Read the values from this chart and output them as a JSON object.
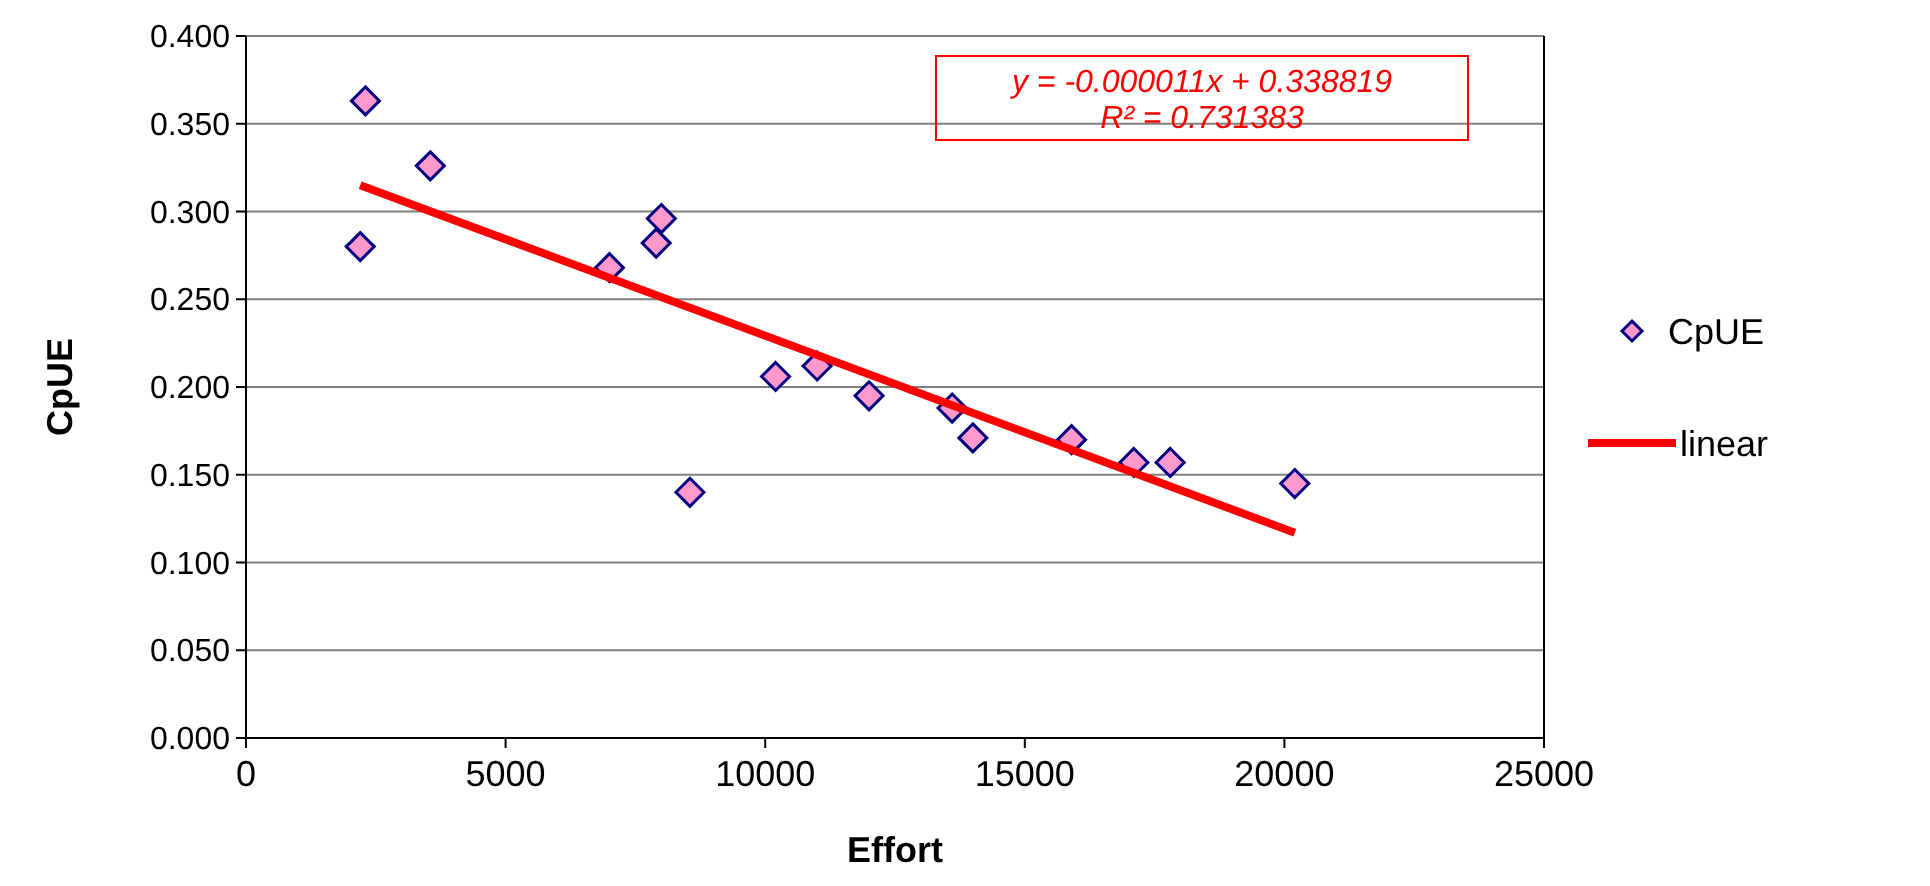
{
  "chart_data": {
    "type": "scatter",
    "xlabel": "Effort",
    "ylabel": "CpUE",
    "xlim": [
      0,
      25000
    ],
    "xticks": [
      0,
      5000,
      10000,
      15000,
      20000,
      25000
    ],
    "ylim": [
      0,
      0.4
    ],
    "yticks": [
      {
        "value": 0,
        "label": "0.000"
      },
      {
        "value": 0.05,
        "label": "0.050"
      },
      {
        "value": 0.1,
        "label": "0.100"
      },
      {
        "value": 0.15,
        "label": "0.150"
      },
      {
        "value": 0.2,
        "label": "0.200"
      },
      {
        "value": 0.25,
        "label": "0.250"
      },
      {
        "value": 0.3,
        "label": "0.300"
      },
      {
        "value": 0.35,
        "label": "0.350"
      },
      {
        "value": 0.4,
        "label": "0.400"
      }
    ],
    "grid": "y",
    "legend": "right",
    "series": [
      {
        "name": "CpUE",
        "marker": "diamond",
        "color": "#ff99cc",
        "x": [
          2300,
          2200,
          3550,
          7000,
          7900,
          8000,
          8550,
          10200,
          11000,
          12000,
          13600,
          14000,
          15900,
          17100,
          17800,
          20200
        ],
        "values": [
          0.363,
          0.28,
          0.326,
          0.268,
          0.282,
          0.296,
          0.14,
          0.206,
          0.212,
          0.195,
          0.188,
          0.171,
          0.17,
          0.157,
          0.157,
          0.145
        ]
      },
      {
        "name": "linear",
        "type": "line",
        "color": "#ff0000",
        "x": [
          2200,
          20200
        ],
        "values": [
          0.315,
          0.117
        ]
      }
    ],
    "annotations": [
      "y = -0.000011x + 0.338819",
      "R² = 0.731383"
    ]
  }
}
